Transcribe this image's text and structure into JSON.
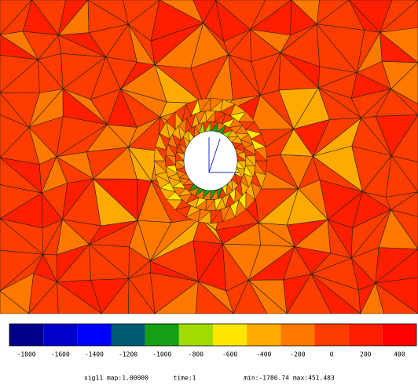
{
  "colorbar": {
    "colors": [
      "#00008c",
      "#0000c8",
      "#0000ff",
      "#005a73",
      "#14a014",
      "#a0dc00",
      "#ffe600",
      "#ffaa00",
      "#ff7800",
      "#ff3c00",
      "#ff1e00",
      "#ff0000"
    ],
    "ticks": [
      -1800,
      -1600,
      -1400,
      -1200,
      -1000,
      -800,
      -600,
      -400,
      -200,
      0,
      200,
      400
    ]
  },
  "footer": {
    "field": "sig11 map:1.00000",
    "time": "time:1",
    "range": "min:-1786.74 max:451.483"
  }
}
